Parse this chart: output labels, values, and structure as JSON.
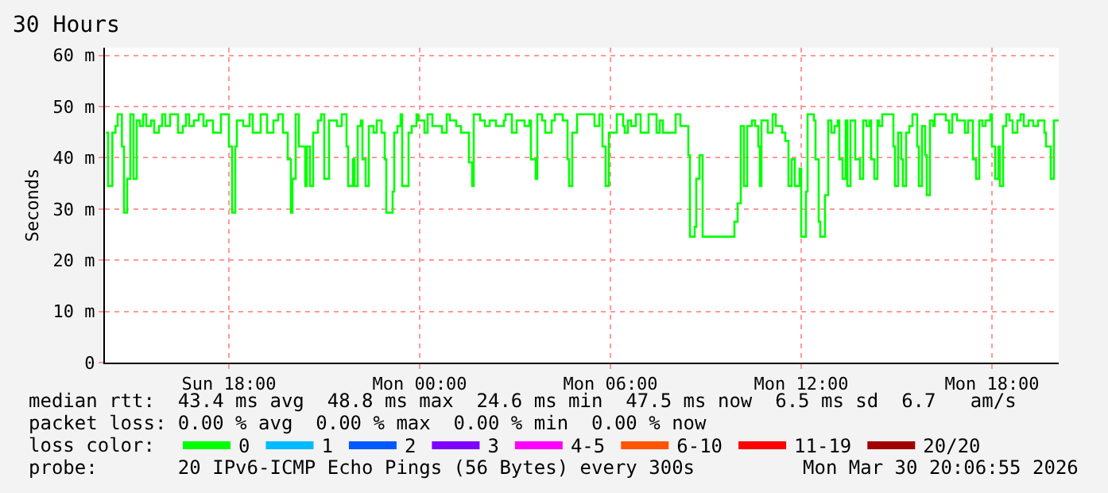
{
  "chart_data": {
    "type": "step",
    "title": "30 Hours",
    "ylabel": "Seconds",
    "xlim": [
      "2026-03-29T14:06",
      "2026-03-30T20:06"
    ],
    "xticks": [
      {
        "value": "2026-03-29T18:00",
        "label": "Sun 18:00"
      },
      {
        "value": "2026-03-30T00:00",
        "label": "Mon 00:00"
      },
      {
        "value": "2026-03-30T06:00",
        "label": "Mon 06:00"
      },
      {
        "value": "2026-03-30T12:00",
        "label": "Mon 12:00"
      },
      {
        "value": "2026-03-30T18:00",
        "label": "Mon 18:00"
      }
    ],
    "ylim": [
      0,
      61.5
    ],
    "yticks": [
      {
        "value": 0,
        "label": "0"
      },
      {
        "value": 10,
        "label": "10 m"
      },
      {
        "value": 20,
        "label": "20 m"
      },
      {
        "value": 30,
        "label": "30 m"
      },
      {
        "value": 40,
        "label": "40 m"
      },
      {
        "value": 50,
        "label": "50 m"
      },
      {
        "value": 60,
        "label": "60 m"
      }
    ],
    "grid": true,
    "legend": "bottom",
    "marker": "none",
    "line_style": "solid",
    "series": [
      {
        "name": "0",
        "color": "#00ff00",
        "x": [
          "2026-03-29T14:08",
          "2026-03-29T14:12",
          "2026-03-29T14:20",
          "2026-03-29T14:26",
          "2026-03-29T14:30",
          "2026-03-29T14:38",
          "2026-03-29T14:42",
          "2026-03-29T14:48",
          "2026-03-29T14:54",
          "2026-03-29T15:00",
          "2026-03-29T15:06",
          "2026-03-29T15:12",
          "2026-03-29T15:18",
          "2026-03-29T15:24",
          "2026-03-29T15:33",
          "2026-03-29T15:39",
          "2026-03-29T15:48",
          "2026-03-29T15:54",
          "2026-03-29T16:00",
          "2026-03-29T16:09",
          "2026-03-29T16:24",
          "2026-03-29T16:33",
          "2026-03-29T16:39",
          "2026-03-29T16:45",
          "2026-03-29T16:54",
          "2026-03-29T17:03",
          "2026-03-29T17:12",
          "2026-03-29T17:18",
          "2026-03-29T17:30",
          "2026-03-29T17:45",
          "2026-03-29T18:00",
          "2026-03-29T18:06",
          "2026-03-29T18:12",
          "2026-03-29T18:15",
          "2026-03-29T18:27",
          "2026-03-29T18:39",
          "2026-03-29T18:45",
          "2026-03-29T19:00",
          "2026-03-29T19:12",
          "2026-03-29T19:24",
          "2026-03-29T19:33",
          "2026-03-29T19:42",
          "2026-03-29T19:51",
          "2026-03-29T19:57",
          "2026-03-29T20:00",
          "2026-03-29T20:06",
          "2026-03-29T20:12",
          "2026-03-29T20:24",
          "2026-03-29T20:27",
          "2026-03-29T20:33",
          "2026-03-29T20:39",
          "2026-03-29T20:48",
          "2026-03-29T20:54",
          "2026-03-29T21:00",
          "2026-03-29T21:09",
          "2026-03-29T21:24",
          "2026-03-29T21:33",
          "2026-03-29T21:42",
          "2026-03-29T21:45",
          "2026-03-29T21:54",
          "2026-03-29T21:57",
          "2026-03-29T22:03",
          "2026-03-29T22:09",
          "2026-03-29T22:12",
          "2026-03-29T22:18",
          "2026-03-29T22:24",
          "2026-03-29T22:33",
          "2026-03-29T22:39",
          "2026-03-29T22:48",
          "2026-03-29T22:54",
          "2026-03-29T22:57",
          "2026-03-29T23:09",
          "2026-03-29T23:12",
          "2026-03-29T23:18",
          "2026-03-29T23:24",
          "2026-03-29T23:27",
          "2026-03-29T23:39",
          "2026-03-29T23:45",
          "2026-03-29T23:54",
          "2026-03-29T23:57",
          "2026-03-30T00:09",
          "2026-03-30T00:15",
          "2026-03-30T00:24",
          "2026-03-30T00:42",
          "2026-03-30T00:51",
          "2026-03-30T00:57",
          "2026-03-30T01:09",
          "2026-03-30T01:18",
          "2026-03-30T01:33",
          "2026-03-30T01:39",
          "2026-03-30T01:42",
          "2026-03-30T01:54",
          "2026-03-30T02:03",
          "2026-03-30T02:12",
          "2026-03-30T02:24",
          "2026-03-30T02:39",
          "2026-03-30T02:42",
          "2026-03-30T02:54",
          "2026-03-30T03:03",
          "2026-03-30T03:18",
          "2026-03-30T03:27",
          "2026-03-30T03:30",
          "2026-03-30T03:39",
          "2026-03-30T03:42",
          "2026-03-30T03:51",
          "2026-03-30T03:57",
          "2026-03-30T04:09",
          "2026-03-30T04:15",
          "2026-03-30T04:30",
          "2026-03-30T04:39",
          "2026-03-30T04:42",
          "2026-03-30T04:48",
          "2026-03-30T04:57",
          "2026-03-30T05:30",
          "2026-03-30T05:39",
          "2026-03-30T05:45",
          "2026-03-30T05:51",
          "2026-03-30T05:57",
          "2026-03-30T06:12",
          "2026-03-30T06:24",
          "2026-03-30T06:27",
          "2026-03-30T06:33",
          "2026-03-30T06:39",
          "2026-03-30T06:48",
          "2026-03-30T06:57",
          "2026-03-30T07:12",
          "2026-03-30T07:27",
          "2026-03-30T07:33",
          "2026-03-30T07:39",
          "2026-03-30T08:03",
          "2026-03-30T08:12",
          "2026-03-30T08:27",
          "2026-03-30T08:30",
          "2026-03-30T08:39",
          "2026-03-30T08:42",
          "2026-03-30T08:48",
          "2026-03-30T08:54",
          "2026-03-30T09:54",
          "2026-03-30T10:00",
          "2026-03-30T10:06",
          "2026-03-30T10:12",
          "2026-03-30T10:18",
          "2026-03-30T10:27",
          "2026-03-30T10:33",
          "2026-03-30T10:39",
          "2026-03-30T10:42",
          "2026-03-30T10:45",
          "2026-03-30T10:57",
          "2026-03-30T11:06",
          "2026-03-30T11:12",
          "2026-03-30T11:24",
          "2026-03-30T11:30",
          "2026-03-30T11:36",
          "2026-03-30T11:42",
          "2026-03-30T11:48",
          "2026-03-30T11:57",
          "2026-03-30T12:00",
          "2026-03-30T12:09",
          "2026-03-30T12:12",
          "2026-03-30T12:24",
          "2026-03-30T12:27",
          "2026-03-30T12:33",
          "2026-03-30T12:36",
          "2026-03-30T12:45",
          "2026-03-30T12:51",
          "2026-03-30T12:57",
          "2026-03-30T13:03",
          "2026-03-30T13:09",
          "2026-03-30T13:12",
          "2026-03-30T13:18",
          "2026-03-30T13:24",
          "2026-03-30T13:27",
          "2026-03-30T13:33",
          "2026-03-30T13:42",
          "2026-03-30T13:51",
          "2026-03-30T13:57",
          "2026-03-30T14:03",
          "2026-03-30T14:09",
          "2026-03-30T14:12",
          "2026-03-30T14:18",
          "2026-03-30T14:24",
          "2026-03-30T14:27",
          "2026-03-30T14:33",
          "2026-03-30T14:54",
          "2026-03-30T14:57",
          "2026-03-30T15:03",
          "2026-03-30T15:09",
          "2026-03-30T15:12",
          "2026-03-30T15:18",
          "2026-03-30T15:24",
          "2026-03-30T15:30",
          "2026-03-30T15:39",
          "2026-03-30T15:42",
          "2026-03-30T15:48",
          "2026-03-30T15:54",
          "2026-03-30T15:57",
          "2026-03-30T16:03",
          "2026-03-30T16:09",
          "2026-03-30T16:12",
          "2026-03-30T16:33",
          "2026-03-30T16:39",
          "2026-03-30T16:45",
          "2026-03-30T16:54",
          "2026-03-30T17:09",
          "2026-03-30T17:15",
          "2026-03-30T17:24",
          "2026-03-30T17:30",
          "2026-03-30T17:36",
          "2026-03-30T17:42",
          "2026-03-30T17:48",
          "2026-03-30T17:57",
          "2026-03-30T18:00",
          "2026-03-30T18:06",
          "2026-03-30T18:12",
          "2026-03-30T18:15",
          "2026-03-30T18:21",
          "2026-03-30T18:27",
          "2026-03-30T18:33",
          "2026-03-30T18:39",
          "2026-03-30T18:48",
          "2026-03-30T18:54",
          "2026-03-30T19:00",
          "2026-03-30T19:09",
          "2026-03-30T19:18",
          "2026-03-30T19:27",
          "2026-03-30T19:39",
          "2026-03-30T19:42",
          "2026-03-30T19:51",
          "2026-03-30T19:57",
          "2026-03-30T20:06"
        ],
        "values": [
          44.9,
          34.5,
          44.9,
          46.2,
          48.5,
          42.2,
          29.3,
          35.9,
          48.5,
          35.9,
          47.3,
          46.2,
          48.5,
          46.2,
          47.3,
          44.9,
          46.2,
          48.5,
          46.2,
          48.5,
          44.9,
          46.2,
          48.5,
          46.2,
          47.3,
          48.5,
          46.2,
          47.3,
          44.9,
          48.5,
          42.2,
          29.3,
          42.2,
          47.3,
          46.2,
          48.5,
          44.9,
          48.5,
          44.9,
          47.3,
          48.5,
          44.9,
          39.7,
          29.3,
          35.9,
          48.5,
          42.2,
          34.5,
          42.2,
          34.5,
          44.9,
          47.3,
          48.5,
          35.9,
          47.3,
          46.2,
          48.5,
          42.2,
          34.5,
          39.7,
          34.5,
          46.2,
          47.3,
          39.7,
          34.5,
          46.2,
          44.9,
          47.3,
          44.9,
          39.7,
          29.3,
          33.4,
          44.9,
          46.2,
          48.5,
          34.5,
          44.9,
          46.2,
          48.5,
          47.3,
          44.9,
          48.5,
          46.2,
          44.9,
          48.5,
          47.3,
          46.2,
          44.9,
          39.1,
          34.5,
          48.5,
          47.3,
          46.2,
          47.3,
          46.2,
          47.3,
          48.5,
          44.9,
          47.3,
          46.2,
          47.3,
          39.7,
          35.9,
          48.5,
          47.3,
          44.9,
          47.3,
          48.5,
          47.3,
          39.7,
          34.5,
          44.9,
          48.5,
          46.2,
          48.5,
          42.2,
          34.5,
          44.9,
          48.5,
          46.2,
          44.9,
          47.3,
          46.2,
          48.5,
          44.9,
          48.5,
          44.9,
          47.3,
          44.9,
          48.5,
          46.2,
          40.5,
          24.6,
          26.5,
          35.9,
          40.5,
          24.6,
          27.5,
          31.1,
          46.2,
          34.5,
          46.2,
          47.3,
          46.2,
          42.2,
          34.5,
          47.3,
          44.9,
          48.5,
          46.2,
          44.9,
          43.3,
          34.5,
          39.7,
          34.5,
          37.9,
          24.6,
          33.4,
          48.5,
          47.3,
          39.7,
          27.5,
          24.6,
          32.7,
          47.3,
          44.9,
          46.2,
          47.3,
          39.7,
          35.9,
          47.3,
          34.5,
          47.3,
          39.7,
          35.9,
          47.3,
          46.2,
          47.3,
          39.7,
          35.9,
          47.3,
          46.2,
          48.5,
          42.2,
          34.5,
          44.9,
          39.7,
          34.5,
          44.9,
          46.2,
          48.5,
          42.2,
          34.5,
          46.2,
          40.5,
          32.7,
          47.3,
          46.2,
          48.5,
          47.3,
          44.9,
          48.5,
          47.3,
          44.9,
          47.3,
          39.7,
          35.9,
          47.3,
          46.2,
          47.3,
          48.5,
          42.2,
          35.9,
          42.2,
          34.5,
          46.2,
          48.5,
          47.3,
          44.9,
          47.3,
          48.5,
          46.2,
          47.3,
          46.2,
          47.3,
          44.9,
          42.2,
          35.9,
          47.3,
          47.3
        ]
      },
      {
        "name": "1",
        "color": "#00bbff"
      },
      {
        "name": "2",
        "color": "#0059ff"
      },
      {
        "name": "3",
        "color": "#7e00ff"
      },
      {
        "name": "4-5",
        "color": "#ff00ff"
      },
      {
        "name": "6-10",
        "color": "#ff5500"
      },
      {
        "name": "11-19",
        "color": "#ff0000"
      },
      {
        "name": "20/20",
        "color": "#a10000"
      }
    ],
    "annotations": [
      "median rtt:  43.4 ms avg  48.8 ms max  24.6 ms min  47.5 ms now  6.5 ms sd  6.7   am/s",
      "packet loss: 0.00 % avg  0.00 % max  0.00 % min  0.00 % now",
      "loss color:",
      "probe:       20 IPv6-ICMP Echo Pings (56 Bytes) every 300s",
      "Mon Mar 30 20:06:55 2026"
    ]
  }
}
